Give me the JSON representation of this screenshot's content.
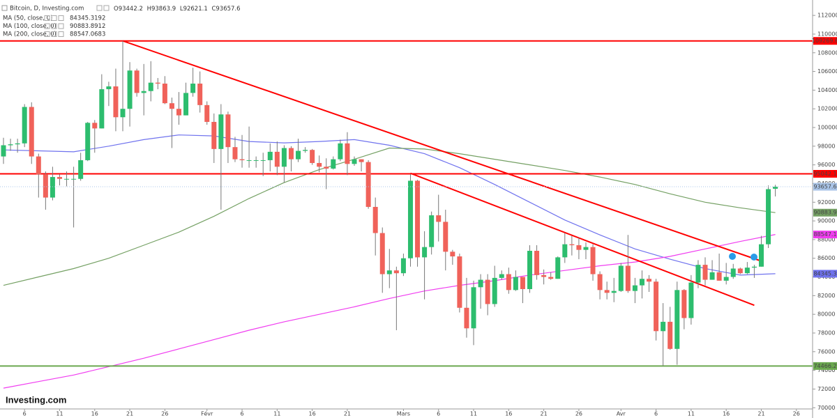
{
  "chart_data": {
    "type": "candlestick",
    "title": "Bitcoin, D, Investing.com",
    "logo": "Investing.com",
    "ohlc_letters": [
      "O",
      "H",
      "L",
      "C"
    ],
    "up_color": "#2dbd6e",
    "down_color": "#f0625a",
    "categories": [
      null,
      null,
      null,
      "6",
      null,
      null,
      null,
      null,
      "11",
      null,
      null,
      null,
      null,
      "16",
      null,
      null,
      null,
      null,
      "21",
      null,
      null,
      null,
      null,
      "26",
      null,
      null,
      null,
      null,
      null,
      "Févr",
      null,
      null,
      null,
      null,
      "6",
      null,
      null,
      null,
      null,
      "11",
      null,
      null,
      null,
      null,
      "16",
      null,
      null,
      null,
      null,
      "21",
      null,
      null,
      null,
      null,
      null,
      null,
      null,
      "Mars",
      null,
      null,
      null,
      null,
      "6",
      null,
      null,
      null,
      null,
      "11",
      null,
      null,
      null,
      null,
      "16",
      null,
      null,
      null,
      null,
      "21",
      null,
      null,
      null,
      null,
      "26",
      null,
      null,
      null,
      null,
      null,
      "Avr",
      null,
      null,
      null,
      null,
      "6",
      null,
      null,
      null,
      null,
      "11",
      null,
      null,
      null,
      null,
      "16",
      null,
      null,
      null,
      null,
      "21",
      null,
      null,
      null,
      null,
      "26"
    ],
    "open": [
      96900,
      98100,
      98200,
      98300,
      102200,
      96900,
      95000,
      92500,
      94700,
      94500,
      94500,
      94500,
      96500,
      100500,
      99900,
      104100,
      104400,
      101100,
      102000,
      106100,
      103700,
      103900,
      104800,
      104700,
      102600,
      102000,
      101300,
      103700,
      104700,
      102400,
      100600,
      97700,
      101400,
      97900,
      96600,
      96500,
      96500,
      96500,
      96500,
      97400,
      95800,
      97800,
      96600,
      97500,
      97600,
      96200,
      95800,
      95600,
      96600,
      98300,
      96100,
      96600,
      96300,
      91500,
      88700,
      84300,
      84700,
      84400,
      86000,
      94300,
      86100,
      87200,
      90600,
      89900,
      86700,
      86200,
      80700,
      78500,
      82900,
      83700,
      81100,
      83900,
      84300,
      82600,
      84000,
      82700,
      86800,
      84200,
      84000,
      83800,
      86100,
      87500,
      87400,
      86900,
      87200,
      84300,
      82600,
      82300,
      82500,
      85200,
      82500,
      83100,
      83800,
      83500,
      78200,
      79200,
      76300,
      82600,
      79600,
      83400,
      85300,
      83700,
      84500,
      83600,
      84000,
      84900,
      84400,
      85000,
      85100,
      87500,
      93442.2,
      null,
      null,
      null
    ],
    "high": [
      98900,
      98800,
      98800,
      102500,
      102700,
      97200,
      95300,
      95800,
      95000,
      95300,
      95800,
      97300,
      100600,
      100800,
      105700,
      104900,
      106300,
      109269.6,
      107000,
      106300,
      106800,
      107100,
      105300,
      105500,
      103200,
      103800,
      104800,
      106400,
      106000,
      102800,
      101500,
      102500,
      101700,
      99000,
      99200,
      100100,
      96900,
      97300,
      98300,
      98500,
      98100,
      98000,
      98800,
      97900,
      97700,
      97000,
      96700,
      96900,
      98700,
      99500,
      96900,
      96600,
      96500,
      92500,
      89300,
      87000,
      85100,
      86500,
      95000,
      94400,
      88900,
      91000,
      92800,
      91200,
      86900,
      86500,
      83900,
      83600,
      84300,
      84300,
      85200,
      84700,
      85000,
      84700,
      84000,
      87400,
      87400,
      84800,
      84500,
      86200,
      88700,
      88400,
      88200,
      87700,
      87500,
      84600,
      83500,
      83900,
      85500,
      88500,
      83900,
      84700,
      84200,
      83800,
      81200,
      80800,
      83500,
      82700,
      84200,
      85800,
      86100,
      85800,
      86500,
      85500,
      85400,
      85000,
      85600,
      85300,
      88400,
      93800,
      93863.9,
      null,
      null,
      null
    ],
    "low": [
      96100,
      97500,
      97300,
      97900,
      96100,
      92500,
      91200,
      92200,
      93800,
      93700,
      89300,
      94300,
      96400,
      97300,
      99900,
      102300,
      99600,
      99600,
      100100,
      103300,
      101300,
      102800,
      104100,
      102500,
      97800,
      100300,
      101300,
      103300,
      101600,
      100300,
      96200,
      91200,
      96200,
      96300,
      95700,
      95700,
      95700,
      94800,
      95300,
      94900,
      94100,
      95300,
      96300,
      97300,
      96000,
      95200,
      93400,
      95500,
      96400,
      94900,
      95900,
      95300,
      91300,
      86300,
      82300,
      82800,
      78300,
      84100,
      85100,
      85100,
      81600,
      86400,
      87800,
      84700,
      85300,
      80200,
      77500,
      76700,
      80600,
      79900,
      80800,
      83700,
      82200,
      82500,
      81200,
      82300,
      83700,
      83200,
      83700,
      83800,
      85500,
      86300,
      85900,
      85900,
      83600,
      81600,
      81600,
      81300,
      82400,
      82300,
      81200,
      81700,
      82400,
      77200,
      74500,
      76200,
      74600,
      78400,
      78900,
      82800,
      83100,
      83700,
      83600,
      83200,
      83800,
      84300,
      84300,
      83900,
      85100,
      87100,
      92621.1,
      null,
      null,
      null
    ],
    "close": [
      98100,
      98200,
      98300,
      102200,
      96900,
      95000,
      92500,
      94700,
      94500,
      94500,
      94500,
      96500,
      100500,
      99900,
      104100,
      104400,
      101100,
      102000,
      106100,
      103700,
      103900,
      104800,
      104700,
      102600,
      102000,
      101300,
      103700,
      104700,
      102400,
      100600,
      97700,
      101400,
      97900,
      96600,
      96500,
      96500,
      96500,
      96500,
      97400,
      95800,
      97800,
      96600,
      97500,
      97600,
      96200,
      95800,
      95600,
      96600,
      98300,
      96100,
      96600,
      96300,
      91500,
      88700,
      84300,
      84700,
      84400,
      86000,
      94300,
      86100,
      87200,
      90600,
      89900,
      86700,
      86200,
      80700,
      78500,
      82900,
      83700,
      81100,
      83900,
      84300,
      82600,
      84000,
      82700,
      86800,
      84200,
      84000,
      83800,
      86100,
      87500,
      87400,
      86900,
      87200,
      84300,
      82600,
      82300,
      82500,
      85200,
      82500,
      83100,
      83800,
      83500,
      78200,
      79200,
      76300,
      82600,
      79600,
      83400,
      85300,
      83700,
      84500,
      83600,
      84000,
      84900,
      84400,
      85000,
      85100,
      87500,
      93400,
      93657.6,
      null,
      null,
      null
    ],
    "price_color": "#a9c4e8",
    "ma": [
      {
        "name": "MA (50, close, 0)",
        "color": "#6f72ee",
        "last_label": "84345.3",
        "x": [
          0,
          5,
          10,
          15,
          20,
          25,
          30,
          35,
          40,
          45,
          50,
          55,
          60,
          65,
          70,
          75,
          80,
          85,
          90,
          95,
          100,
          105,
          110
        ],
        "values": [
          97600,
          97500,
          97400,
          98000,
          98700,
          99200,
          99100,
          98500,
          98350,
          98500,
          98700,
          98100,
          97200,
          95700,
          93900,
          92000,
          90100,
          88500,
          87000,
          85900,
          84900,
          84200,
          84345.3192
        ]
      },
      {
        "name": "MA (100, close, 0)",
        "color": "#74a063",
        "last_label": "90883.9",
        "x": [
          0,
          5,
          10,
          15,
          20,
          25,
          30,
          35,
          40,
          45,
          50,
          55,
          60,
          65,
          70,
          75,
          80,
          85,
          90,
          95,
          100,
          105,
          110
        ],
        "values": [
          83100,
          84000,
          84900,
          86000,
          87400,
          88800,
          90500,
          92400,
          94100,
          95500,
          96600,
          97800,
          97700,
          97200,
          96600,
          96000,
          95400,
          94700,
          93900,
          92900,
          92000,
          91400,
          90883.8912
        ]
      },
      {
        "name": "MA (200, close, 0)",
        "color": "#f03cf0",
        "last_label": "88547.1",
        "x": [
          0,
          5,
          10,
          15,
          20,
          25,
          30,
          35,
          40,
          45,
          50,
          55,
          60,
          65,
          70,
          75,
          80,
          85,
          90,
          95,
          100,
          105,
          110
        ],
        "values": [
          72100,
          72800,
          73500,
          74400,
          75300,
          76300,
          77300,
          78300,
          79200,
          80000,
          80800,
          81700,
          82500,
          83100,
          83600,
          84200,
          84700,
          85200,
          85600,
          86200,
          87000,
          87800,
          88547.0683
        ]
      }
    ],
    "levels": [
      {
        "value": 109269.6,
        "color": "#ff0000"
      },
      {
        "value": 95042.1,
        "color": "#ff0000"
      },
      {
        "value": 74466.2,
        "color": "#6aa84f"
      }
    ],
    "trendlines": [
      {
        "color": "#ff0000",
        "x": [
          17,
          108
        ],
        "values": [
          109269.6,
          85700
        ]
      },
      {
        "color": "#ff0000",
        "x": [
          58,
          107
        ],
        "values": [
          95100,
          80970
        ]
      }
    ],
    "ylim": [
      68900,
      113650
    ],
    "yticks": [
      70000,
      72000,
      74000,
      76000,
      78000,
      80000,
      82000,
      84000,
      86000,
      88000,
      90000,
      92000,
      94000,
      96000,
      98000,
      100000,
      102000,
      104000,
      106000,
      108000,
      110000,
      112000
    ]
  }
}
